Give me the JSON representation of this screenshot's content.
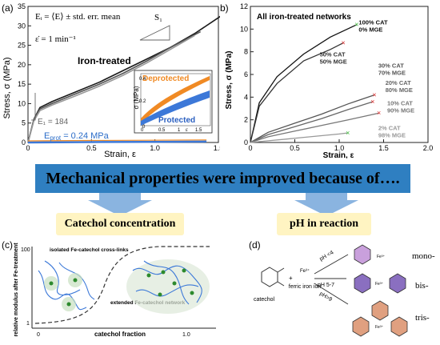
{
  "panel_a": {
    "label": "(a)",
    "formula_mean": "Eᵢ = ⟨E⟩ ± std. err. mean",
    "formula_rate": "ε̇ = 1 min⁻¹",
    "slope_label": "S₁",
    "series_label": "Iron-treated",
    "modulus_label": "E₁ = 184",
    "eprot_label": "E",
    "eprot_sub": "prot",
    "eprot_value": " = 0.24 MPa",
    "ylabel": "Stress, σ (MPa)",
    "xlabel": "Strain, ε",
    "inset_deprotected": "Deprotected",
    "inset_protected": "Protected",
    "inset_ylabel": "σ (MPa)",
    "inset_xlabel": "ε",
    "inset_yticks": [
      "0.4",
      "0.2",
      "0"
    ],
    "inset_xticks": [
      "0",
      "0.5",
      "1",
      "1.5"
    ]
  },
  "panel_b": {
    "label": "(b)",
    "title": "All iron-treated networks",
    "ylabel": "Stress, σ (MPa)",
    "xlabel": "Strain, ε"
  },
  "chart_data": [
    {
      "type": "line",
      "panel": "a",
      "xlabel": "Strain, ε",
      "ylabel": "Stress, σ (MPa)",
      "xlim": [
        0,
        1.6
      ],
      "ylim": [
        0,
        35
      ],
      "xticks": [
        "0",
        "0.5",
        "1.0",
        "1.5"
      ],
      "yticks": [
        "0",
        "5",
        "10",
        "15",
        "20",
        "25",
        "30",
        "35"
      ],
      "series": [
        {
          "name": "Iron-treated",
          "x": [
            0,
            0.05,
            0.1,
            0.2,
            0.4,
            0.6,
            0.8,
            1.0,
            1.2,
            1.4,
            1.62
          ],
          "y": [
            0,
            6,
            9,
            10.5,
            13,
            15.5,
            18.5,
            21.5,
            24.5,
            28,
            32.5
          ]
        },
        {
          "name": "Iron-treated",
          "x": [
            0,
            0.05,
            0.1,
            0.2,
            0.4,
            0.6,
            0.8,
            1.0,
            1.2,
            1.45
          ],
          "y": [
            0,
            6,
            8.6,
            10,
            12.5,
            15,
            17.8,
            21,
            24.5,
            28.5
          ]
        },
        {
          "name": "Iron-treated",
          "x": [
            0,
            0.05,
            0.1,
            0.2,
            0.4,
            0.6,
            0.8,
            1.0,
            1.2,
            1.4
          ],
          "y": [
            0,
            5.6,
            8.2,
            9.6,
            12,
            14.5,
            17.3,
            20.5,
            24,
            27.5
          ]
        },
        {
          "name": "Protected",
          "x": [
            0,
            0.5,
            1.0,
            1.5
          ],
          "y": [
            0,
            0.1,
            0.16,
            0.24
          ]
        }
      ]
    },
    {
      "type": "line",
      "panel": "b",
      "xlabel": "Strain, ε",
      "ylabel": "Stress, σ (MPa)",
      "xlim": [
        0,
        2.0
      ],
      "ylim": [
        0,
        12
      ],
      "xticks": [
        "0",
        "0.5",
        "1.0",
        "1.5",
        "2.0"
      ],
      "yticks": [
        "0",
        "2",
        "4",
        "6",
        "8",
        "10",
        "12"
      ],
      "series": [
        {
          "name": "100% CAT 0% MGE",
          "x": [
            0,
            0.1,
            0.3,
            0.6,
            0.9,
            1.2
          ],
          "y": [
            0,
            3.5,
            5.8,
            7.8,
            9.3,
            10.4
          ]
        },
        {
          "name": "50% CAT 50% MGE",
          "x": [
            0,
            0.1,
            0.3,
            0.6,
            0.9,
            1.05
          ],
          "y": [
            0,
            3.2,
            5.2,
            7.2,
            8.2,
            8.8
          ]
        },
        {
          "name": "30% CAT 70% MGE",
          "x": [
            0,
            0.2,
            0.5,
            0.8,
            1.1,
            1.4
          ],
          "y": [
            0,
            0.9,
            1.7,
            2.5,
            3.4,
            4.2
          ]
        },
        {
          "name": "20% CAT 80% MGE",
          "x": [
            0,
            0.2,
            0.5,
            0.8,
            1.1,
            1.38
          ],
          "y": [
            0,
            0.7,
            1.4,
            2.1,
            2.9,
            3.6
          ]
        },
        {
          "name": "10% CAT 90% MGE",
          "x": [
            0,
            0.2,
            0.5,
            0.8,
            1.1,
            1.45
          ],
          "y": [
            0,
            0.5,
            1.0,
            1.5,
            2.0,
            2.6
          ]
        },
        {
          "name": "2% CAT 98% MGE",
          "x": [
            0,
            0.2,
            0.4,
            0.6,
            0.8,
            1.0,
            1.1
          ],
          "y": [
            0,
            0.15,
            0.3,
            0.45,
            0.6,
            0.75,
            0.85
          ]
        }
      ]
    }
  ],
  "banner": "Mechanical properties were improved because of….",
  "left_box": "Catechol concentration",
  "right_box": "pH in reaction",
  "panel_c": {
    "label": "(c)",
    "ylabel": "relative modulus after Fe-treatment",
    "xlabel": "catechol fraction",
    "x_start": "0",
    "x_end": "1.0",
    "y_top": "100",
    "y_bottom": "1",
    "annotation_left": "isolated Fe-catechol cross-links",
    "annotation_right": "extended Fe-catechol network"
  },
  "panel_d": {
    "label": "(d)",
    "catechol": "catechol",
    "plus": "+",
    "fe": "Fe³⁺",
    "ferric": "ferric iron ion",
    "ph1": "pH <4",
    "ph2": "pH 5-7",
    "ph3": "pH>9",
    "mono": "mono-",
    "bis": "bis-",
    "tris": "tris-"
  },
  "colors": {
    "banner": "#2f7fc1",
    "arrow": "#8ab4e0",
    "pill": "#fff4c2",
    "orange": "#f08a24",
    "blue": "#3c78d8",
    "green": "#44c040",
    "red": "#e03030",
    "mono_ring": "#c9a0dc",
    "bis_ring": "#8a6fc0",
    "tris_ring": "#e0a080"
  }
}
